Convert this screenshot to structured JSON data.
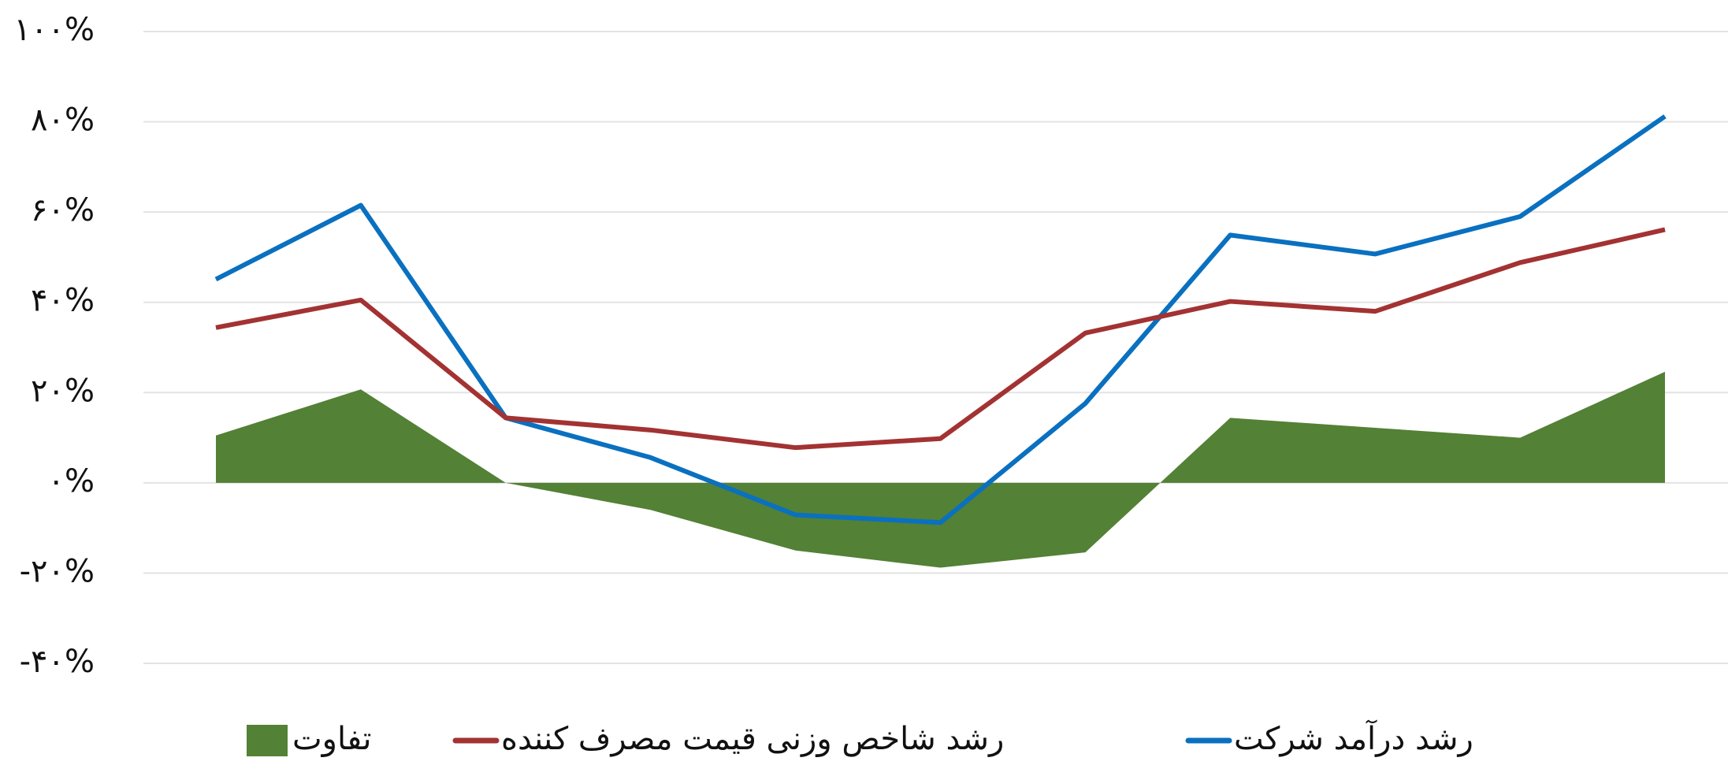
{
  "chart_data": {
    "type": "line",
    "categories": [
      null,
      null,
      null,
      null,
      null,
      null,
      null,
      null,
      null,
      null,
      null
    ],
    "series": [
      {
        "name": "رشد درآمد شرکت",
        "color": "#0a70c0",
        "type": "line",
        "values": [
          45.1,
          61.5,
          14.4,
          5.6,
          -7.1,
          -8.8,
          17.6,
          54.9,
          50.7,
          59,
          81.2
        ]
      },
      {
        "name": "رشد شاخص وزنی قیمت مصرف کننده",
        "color": "#a33232",
        "type": "line",
        "values": [
          34.4,
          40.5,
          14.4,
          11.7,
          7.8,
          9.8,
          33.2,
          40.2,
          38,
          48.8,
          56.1
        ]
      },
      {
        "name": "تفاوت",
        "color": "#538135",
        "type": "area",
        "values": [
          10.5,
          20.7,
          0,
          -6,
          -15,
          -18.8,
          -15.4,
          14.4,
          12.2,
          10,
          24.6
        ]
      }
    ],
    "ylim": [
      -40,
      100
    ],
    "yticks": [
      {
        "value": -40,
        "label": "-۴۰%"
      },
      {
        "value": -20,
        "label": "-۲۰%"
      },
      {
        "value": 0,
        "label": "۰%"
      },
      {
        "value": 20,
        "label": "۲۰%"
      },
      {
        "value": 40,
        "label": "۴۰%"
      },
      {
        "value": 60,
        "label": "۶۰%"
      },
      {
        "value": 80,
        "label": "۸۰%"
      },
      {
        "value": 100,
        "label": "۱۰۰%"
      }
    ],
    "grid": true
  }
}
